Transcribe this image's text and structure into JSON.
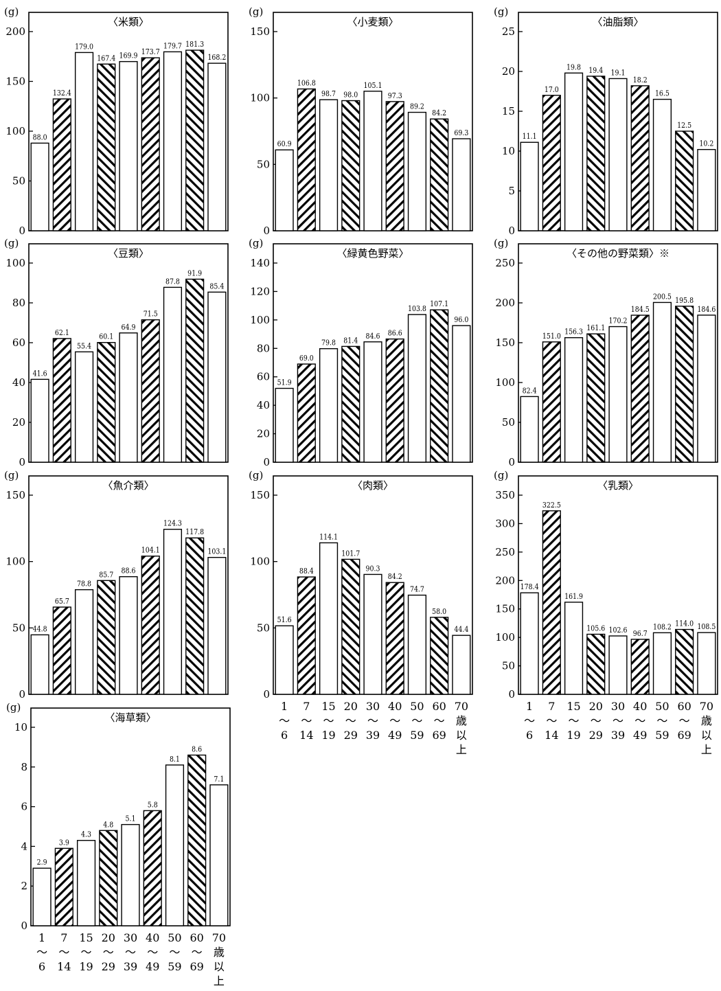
{
  "unit": "(g)",
  "x_labels": [
    [
      "1",
      "～",
      "6"
    ],
    [
      "7",
      "～",
      "14"
    ],
    [
      "15",
      "～",
      "19"
    ],
    [
      "20",
      "～",
      "29"
    ],
    [
      "30",
      "～",
      "39"
    ],
    [
      "40",
      "～",
      "49"
    ],
    [
      "50",
      "～",
      "59"
    ],
    [
      "60",
      "～",
      "69"
    ],
    [
      "70",
      "歳",
      "以",
      "上"
    ]
  ],
  "pattern_sequence": [
    "none",
    "fwd",
    "none",
    "back",
    "none",
    "fwd",
    "none",
    "back",
    "none"
  ],
  "chart_data": [
    {
      "type": "bar",
      "title": "〈米類〉",
      "ylim": [
        0,
        200
      ],
      "yticks": [
        0,
        50,
        100,
        150,
        200
      ],
      "values": [
        88.0,
        132.4,
        179.0,
        167.4,
        169.9,
        173.7,
        179.7,
        181.3,
        168.2
      ],
      "labels": [
        "88.0",
        "132.4",
        "179.0",
        "167.4",
        "169.9",
        "173.7",
        "179.7",
        "181.3",
        "168.2"
      ]
    },
    {
      "type": "bar",
      "title": "〈小麦類〉",
      "ylim": [
        0,
        150
      ],
      "yticks": [
        0,
        50,
        100,
        150
      ],
      "values": [
        60.9,
        106.8,
        98.7,
        98.0,
        105.1,
        97.3,
        89.2,
        84.2,
        69.3
      ],
      "labels": [
        "60.9",
        "106.8",
        "98.7",
        "98.0",
        "105.1",
        "97.3",
        "89.2",
        "84.2",
        "69.3"
      ]
    },
    {
      "type": "bar",
      "title": "〈油脂類〉",
      "ylim": [
        0,
        25
      ],
      "yticks": [
        0,
        5,
        10,
        15,
        20,
        25
      ],
      "values": [
        11.1,
        17.0,
        19.8,
        19.4,
        19.1,
        18.2,
        16.5,
        12.5,
        10.2
      ],
      "labels": [
        "11.1",
        "17.0",
        "19.8",
        "19.4",
        "19.1",
        "18.2",
        "16.5",
        "12.5",
        "10.2"
      ]
    },
    {
      "type": "bar",
      "title": "〈豆類〉",
      "ylim": [
        0,
        100
      ],
      "yticks": [
        0,
        20,
        40,
        60,
        80,
        100
      ],
      "values": [
        41.6,
        62.1,
        55.4,
        60.1,
        64.9,
        71.5,
        87.8,
        91.9,
        85.4
      ],
      "labels": [
        "41.6",
        "62.1",
        "55.4",
        "60.1",
        "64.9",
        "71.5",
        "87.8",
        "91.9",
        "85.4"
      ]
    },
    {
      "type": "bar",
      "title": "〈緑黄色野菜〉",
      "ylim": [
        0,
        140
      ],
      "yticks": [
        0,
        20,
        40,
        60,
        80,
        100,
        120,
        140
      ],
      "values": [
        51.9,
        69.0,
        79.8,
        81.4,
        84.6,
        86.6,
        103.8,
        107.1,
        96.0
      ],
      "labels": [
        "51.9",
        "69.0",
        "79.8",
        "81.4",
        "84.6",
        "86.6",
        "103.8",
        "107.1",
        "96.0"
      ]
    },
    {
      "type": "bar",
      "title": "〈その他の野菜類〉※",
      "ylim": [
        0,
        250
      ],
      "yticks": [
        0,
        50,
        100,
        150,
        200,
        250
      ],
      "values": [
        82.4,
        151.0,
        156.3,
        161.1,
        170.2,
        184.5,
        200.5,
        195.8,
        184.6
      ],
      "labels": [
        "82.4",
        "151.0",
        "156.3",
        "161.1",
        "170.2",
        "184.5",
        "200.5",
        "195.8",
        "184.6"
      ]
    },
    {
      "type": "bar",
      "title": "〈魚介類〉",
      "ylim": [
        0,
        150
      ],
      "yticks": [
        0,
        50,
        100,
        150
      ],
      "values": [
        44.8,
        65.7,
        78.8,
        85.7,
        88.6,
        104.1,
        124.3,
        117.8,
        103.1
      ],
      "labels": [
        "44.8",
        "65.7",
        "78.8",
        "85.7",
        "88.6",
        "104.1",
        "124.3",
        "117.8",
        "103.1"
      ]
    },
    {
      "type": "bar",
      "title": "〈肉類〉",
      "ylim": [
        0,
        150
      ],
      "yticks": [
        0,
        50,
        100,
        150
      ],
      "values": [
        51.6,
        88.4,
        114.1,
        101.7,
        90.3,
        84.2,
        74.7,
        58.0,
        44.4
      ],
      "labels": [
        "51.6",
        "88.4",
        "114.1",
        "101.7",
        "90.3",
        "84.2",
        "74.7",
        "58.0",
        "44.4"
      ]
    },
    {
      "type": "bar",
      "title": "〈乳類〉",
      "ylim": [
        0,
        350
      ],
      "yticks": [
        0,
        50,
        100,
        150,
        200,
        250,
        300,
        350
      ],
      "values": [
        178.4,
        322.5,
        161.9,
        105.6,
        102.6,
        96.7,
        108.2,
        114.0,
        108.5
      ],
      "labels": [
        "178.4",
        "322.5",
        "161.9",
        "105.6",
        "102.6",
        "96.7",
        "108.2",
        "114.0",
        "108.5"
      ]
    },
    {
      "type": "bar",
      "title": "〈海草類〉",
      "ylim": [
        0,
        10
      ],
      "yticks": [
        0,
        2,
        4,
        6,
        8,
        10
      ],
      "values": [
        2.9,
        3.9,
        4.3,
        4.8,
        5.1,
        5.8,
        8.1,
        8.6,
        7.1
      ],
      "labels": [
        "2.9",
        "3.9",
        "4.3",
        "4.8",
        "5.1",
        "5.8",
        "8.1",
        "8.6",
        "7.1"
      ]
    }
  ]
}
